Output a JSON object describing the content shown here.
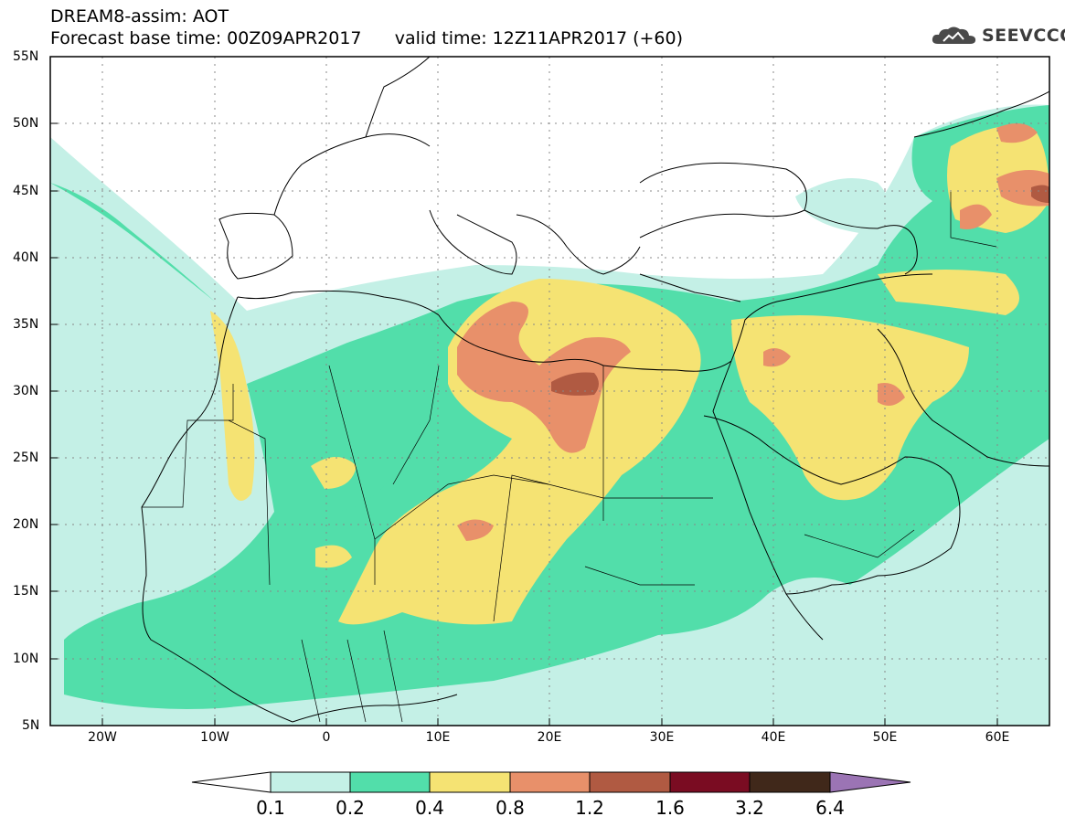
{
  "title": {
    "line1": "DREAM8-assim: AOT",
    "line2": "Forecast base time: 00Z09APR2017      valid time: 12Z11APR2017 (+60)"
  },
  "logo": {
    "text": "SEEVCCC",
    "icon": "cloud-logo-icon"
  },
  "map": {
    "lat_labels": [
      "55N",
      "50N",
      "45N",
      "40N",
      "35N",
      "30N",
      "25N",
      "20N",
      "15N",
      "10N",
      "5N"
    ],
    "lon_labels": [
      "20W",
      "10W",
      "0",
      "10E",
      "20E",
      "30E",
      "40E",
      "50E",
      "60E"
    ],
    "lat_range": [
      5,
      55
    ],
    "lon_range": [
      -25,
      65
    ],
    "grid": true,
    "colors": {
      "ocean_bg": "#ffffff",
      "level_01": "#c4f0e6",
      "level_02": "#52deaa",
      "level_04": "#f5e373",
      "level_08": "#e8906a",
      "level_12": "#b05a42",
      "level_16": "#7a0c22",
      "level_32": "#40281a",
      "level_64": "#9b74b4",
      "borders": "#000000"
    }
  },
  "colorbar": {
    "labels": [
      "0.1",
      "0.2",
      "0.4",
      "0.8",
      "1.2",
      "1.6",
      "3.2",
      "6.4"
    ],
    "colors": [
      "#c4f0e6",
      "#52deaa",
      "#f5e373",
      "#e8906a",
      "#b05a42",
      "#7a0c22",
      "#40281a"
    ],
    "under_color": "#ffffff",
    "over_color": "#9b74b4"
  }
}
